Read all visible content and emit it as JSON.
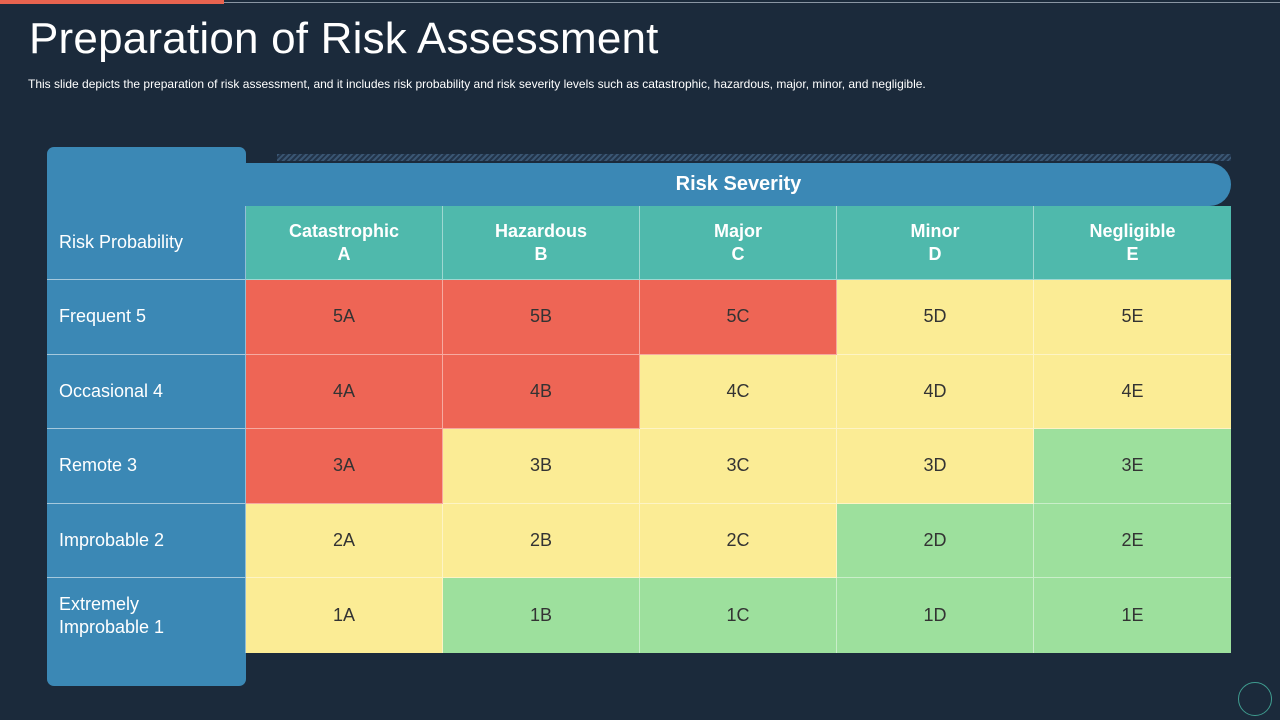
{
  "title": "Preparation of Risk Assessment",
  "subtitle": "This slide depicts the preparation  of risk assessment, and it includes risk probability and risk severity levels such as catastrophic, hazardous, major, minor, and negligible.",
  "severity_label": "Risk Severity",
  "probability_label": "Risk Probability",
  "colors": {
    "red": "#ee6555",
    "yellow": "#fbec95",
    "green": "#9de09d",
    "blue": "#3b88b5",
    "teal": "#4fb9ac"
  },
  "columns": [
    {
      "name": "Catastrophic",
      "code": "A"
    },
    {
      "name": "Hazardous",
      "code": "B"
    },
    {
      "name": "Major",
      "code": "C"
    },
    {
      "name": "Minor",
      "code": "D"
    },
    {
      "name": "Negligible",
      "code": "E"
    }
  ],
  "rows": [
    {
      "label": "Frequent 5",
      "cells": [
        {
          "text": "5A",
          "level": "red"
        },
        {
          "text": "5B",
          "level": "red"
        },
        {
          "text": "5C",
          "level": "red"
        },
        {
          "text": "5D",
          "level": "yellow"
        },
        {
          "text": "5E",
          "level": "yellow"
        }
      ]
    },
    {
      "label": "Occasional 4",
      "cells": [
        {
          "text": "4A",
          "level": "red"
        },
        {
          "text": "4B",
          "level": "red"
        },
        {
          "text": "4C",
          "level": "yellow"
        },
        {
          "text": "4D",
          "level": "yellow"
        },
        {
          "text": "4E",
          "level": "yellow"
        }
      ]
    },
    {
      "label": "Remote 3",
      "cells": [
        {
          "text": "3A",
          "level": "red"
        },
        {
          "text": "3B",
          "level": "yellow"
        },
        {
          "text": "3C",
          "level": "yellow"
        },
        {
          "text": "3D",
          "level": "yellow"
        },
        {
          "text": "3E",
          "level": "green"
        }
      ]
    },
    {
      "label": "Improbable 2",
      "cells": [
        {
          "text": "2A",
          "level": "yellow"
        },
        {
          "text": "2B",
          "level": "yellow"
        },
        {
          "text": "2C",
          "level": "yellow"
        },
        {
          "text": "2D",
          "level": "green"
        },
        {
          "text": "2E",
          "level": "green"
        }
      ]
    },
    {
      "label_line1": "Extremely",
      "label_line2": "Improbable 1",
      "cells": [
        {
          "text": "1A",
          "level": "yellow"
        },
        {
          "text": "1B",
          "level": "green"
        },
        {
          "text": "1C",
          "level": "green"
        },
        {
          "text": "1D",
          "level": "green"
        },
        {
          "text": "1E",
          "level": "green"
        }
      ]
    }
  ]
}
